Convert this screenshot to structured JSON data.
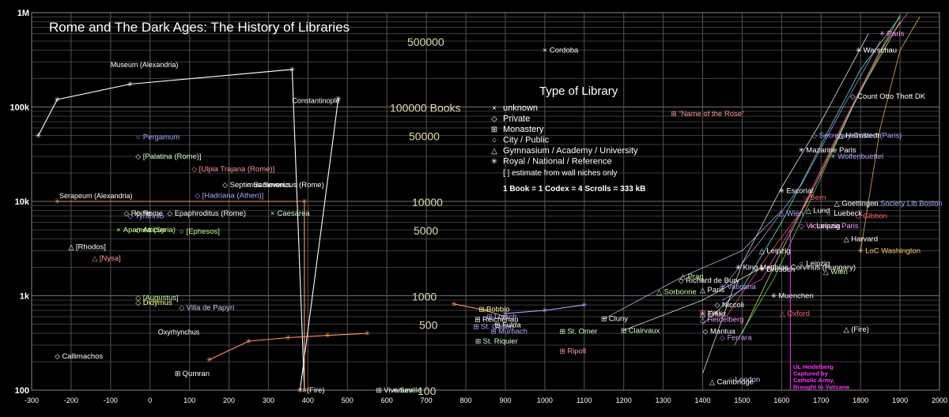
{
  "chart_data": {
    "type": "scatter",
    "title": "Rome and The Dark Ages: The History of Libraries",
    "x_axis": {
      "range": [
        -300,
        2000
      ],
      "ticks": [
        "-300",
        "-200",
        "-100",
        "0",
        "100",
        "200",
        "300",
        "400",
        "500",
        "600",
        "700",
        "800",
        "900",
        "1000",
        "1100",
        "1200",
        "1300",
        "1400",
        "1500",
        "1600",
        "1700",
        "1800",
        "1900",
        "2000"
      ]
    },
    "y_axis": {
      "scale": "log",
      "range": [
        100,
        1000000
      ],
      "ticks": [
        {
          "v": 100,
          "label": "100"
        },
        {
          "v": 1000,
          "label": "1k"
        },
        {
          "v": 10000,
          "label": "10k"
        },
        {
          "v": 100000,
          "label": "100k"
        },
        {
          "v": 1000000,
          "label": "1M"
        }
      ]
    },
    "grid": true,
    "guides": [
      {
        "label": "500000",
        "v": 500000
      },
      {
        "label": "100000 Books",
        "v": 100000
      },
      {
        "label": "50000",
        "v": 50000
      },
      {
        "label": "10000",
        "v": 10000
      },
      {
        "label": "5000",
        "v": 5000
      },
      {
        "label": "1000",
        "v": 1000
      },
      {
        "label": "500",
        "v": 500
      },
      {
        "label": "100",
        "v": 100
      }
    ],
    "legend": {
      "title": "Type of Library",
      "items": [
        {
          "symbol": "×",
          "label": "unknown"
        },
        {
          "symbol": "◇",
          "label": "Private"
        },
        {
          "symbol": "⊞",
          "label": "Monastery"
        },
        {
          "symbol": "○",
          "label": "City / Public"
        },
        {
          "symbol": "△",
          "label": "Gymnasium / Academy / University"
        },
        {
          "symbol": "✳",
          "label": "Royal / National / Reference"
        }
      ],
      "notes": [
        "[ ] estimate from wall niches only",
        "1 Book = 1 Codex = 4 Scrolls = 333 kB"
      ]
    },
    "series": [
      {
        "name": "Museum (Alexandria)",
        "color": "#ffffff",
        "label_at": [
          -100,
          265000
        ],
        "points": [
          [
            -283,
            50000
          ],
          [
            -235,
            120000
          ],
          [
            -50,
            175000
          ],
          [
            360,
            250000
          ],
          [
            391,
            100
          ]
        ]
      },
      {
        "name": "Constantinople",
        "color": "#ffffff",
        "label_at": [
          360,
          110000
        ],
        "points": [
          [
            380,
            100
          ],
          [
            477,
            123000
          ]
        ]
      },
      {
        "name": "Serapeum (Alexandria)",
        "color": "#ff9966",
        "label_at": [
          -230,
          10800
        ],
        "points": [
          [
            -235,
            10000
          ],
          [
            391,
            10000
          ],
          [
            391,
            100
          ]
        ]
      },
      {
        "name": "Oxyrhynchus",
        "color": "#ff9966",
        "label_at": [
          20,
          390
        ],
        "points": [
          [
            150,
            210
          ],
          [
            250,
            330
          ],
          [
            350,
            360
          ],
          [
            450,
            380
          ],
          [
            550,
            400
          ]
        ]
      },
      {
        "name": "",
        "color": "#ff9966",
        "points": [
          [
            770,
            820
          ],
          [
            850,
            700
          ],
          [
            900,
            600
          ]
        ]
      },
      {
        "name": "",
        "color": "#aaaaff",
        "points": [
          [
            900,
            650
          ],
          [
            1000,
            700
          ],
          [
            1100,
            800
          ]
        ]
      }
    ],
    "points": [
      {
        "label": "Cordoba",
        "x": 1000,
        "y": 400000,
        "m": "×",
        "c": "#ffffff"
      },
      {
        "label": "Pergamum",
        "x": -30,
        "y": 48000,
        "m": "○",
        "c": "#aaaaff"
      },
      {
        "label": "[Palatina (Rome)]",
        "x": -30,
        "y": 30000,
        "m": "◇",
        "c": "#ccffcc"
      },
      {
        "label": "[Ulpia Trajana (Rome)]",
        "x": 112,
        "y": 22000,
        "m": "◇",
        "c": "#ff9999"
      },
      {
        "label": "Septimus Severus",
        "x": 190,
        "y": 15000,
        "m": "◇",
        "c": "#ffffff"
      },
      {
        "label": "Sammonicus (Rome)",
        "x": 250,
        "y": 15000,
        "m": "○",
        "c": "#ffffff"
      },
      {
        "label": "[Hadriana (Athen)]",
        "x": 120,
        "y": 11500,
        "m": "◇",
        "c": "#aaaaff"
      },
      {
        "label": "Rome",
        "x": -60,
        "y": 7500,
        "m": "◇",
        "c": "#ffff99"
      },
      {
        "label": "Rome",
        "x": -30,
        "y": 7500,
        "m": "◇",
        "c": "#ffffff"
      },
      {
        "label": "Tyrannio",
        "x": -50,
        "y": 7000,
        "m": "◇",
        "c": "#aaaaff"
      },
      {
        "label": "Epaphroditus (Rome)",
        "x": 50,
        "y": 7500,
        "m": "◇",
        "c": "#ffffff"
      },
      {
        "label": "Caesarea",
        "x": 310,
        "y": 7500,
        "m": "×",
        "c": "#ccffcc"
      },
      {
        "label": "Apamea (Syria)",
        "x": -80,
        "y": 5000,
        "m": "×",
        "c": "#ccff99"
      },
      {
        "label": "Atticus",
        "x": -30,
        "y": 5000,
        "m": "◇",
        "c": "#ccff99"
      },
      {
        "label": "[Ephesos]",
        "x": 80,
        "y": 4800,
        "m": "○",
        "c": "#ccff99"
      },
      {
        "label": "[Rhodos]",
        "x": -200,
        "y": 3300,
        "m": "△",
        "c": "#ffffff"
      },
      {
        "label": "[Nysa]",
        "x": -140,
        "y": 2500,
        "m": "△",
        "c": "#ff9999"
      },
      {
        "label": "[Augustus]",
        "x": -30,
        "y": 950,
        "m": "◇",
        "c": "#ccff99"
      },
      {
        "label": "Didymus",
        "x": -30,
        "y": 850,
        "m": "◇",
        "c": "#ffff99"
      },
      {
        "label": "Villa de Papyri",
        "x": 80,
        "y": 750,
        "m": "◇",
        "c": "#ccccff"
      },
      {
        "label": "Callimachos",
        "x": -235,
        "y": 230,
        "m": "◇",
        "c": "#ffffff"
      },
      {
        "label": "Qumran",
        "x": 70,
        "y": 150,
        "m": "⊞",
        "c": "#ffffff"
      },
      {
        "label": "(Fire)",
        "x": 385,
        "y": 100,
        "m": "",
        "c": "#ffffff"
      },
      {
        "label": "Vivarium",
        "x": 580,
        "y": 100,
        "m": "⊞",
        "c": "#ffffff"
      },
      {
        "label": "Seville",
        "x": 620,
        "y": 100,
        "m": "×",
        "c": "#ccffcc"
      },
      {
        "label": "Bobbio",
        "x": 840,
        "y": 720,
        "m": "⊞",
        "c": "#ffff99"
      },
      {
        "label": "Lorsch",
        "x": 860,
        "y": 600,
        "m": "⊞",
        "c": "#aaaaff"
      },
      {
        "label": "Reichenau",
        "x": 830,
        "y": 560,
        "m": "⊞",
        "c": "#ffffff"
      },
      {
        "label": "St. Gallen",
        "x": 826,
        "y": 470,
        "m": "⊞",
        "c": "#aaaaff"
      },
      {
        "label": "Fulda",
        "x": 880,
        "y": 490,
        "m": "⊞",
        "c": "#ffffff"
      },
      {
        "label": "Murbach",
        "x": 870,
        "y": 420,
        "m": "⊞",
        "c": "#aaaaff"
      },
      {
        "label": "St. Riquier",
        "x": 831,
        "y": 330,
        "m": "⊞",
        "c": "#ccffcc"
      },
      {
        "label": "St. Omer",
        "x": 1045,
        "y": 420,
        "m": "⊞",
        "c": "#ccffcc"
      },
      {
        "label": "Ripoll",
        "x": 1045,
        "y": 260,
        "m": "⊞",
        "c": "#ff9999"
      },
      {
        "label": "Cluny",
        "x": 1150,
        "y": 570,
        "m": "⊞",
        "c": "#ffffff"
      },
      {
        "label": "Clairvaux",
        "x": 1200,
        "y": 430,
        "m": "⊞",
        "c": "#ccffcc"
      },
      {
        "label": "Vaticana",
        "x": 1450,
        "y": 1250,
        "m": "✳",
        "c": "#aaaaff"
      },
      {
        "label": "Sorbonne",
        "x": 1290,
        "y": 1100,
        "m": "△",
        "c": "#ccff99"
      },
      {
        "label": "Richard de Bury",
        "x": 1345,
        "y": 1450,
        "m": "◇",
        "c": "#ffffff"
      },
      {
        "label": "Prag",
        "x": 1350,
        "y": 1600,
        "m": "△",
        "c": "#ccff99"
      },
      {
        "label": "King Matthias Corvinus (Hungary)",
        "x": 1490,
        "y": 2000,
        "m": "✳",
        "c": "#ffffff"
      },
      {
        "label": "Paris",
        "x": 1400,
        "y": 1150,
        "m": "△",
        "c": "#ffffff"
      },
      {
        "label": "Niccoli",
        "x": 1437,
        "y": 800,
        "m": "◇",
        "c": "#ffffff"
      },
      {
        "label": "York",
        "x": 1400,
        "y": 660,
        "m": "⊞",
        "c": "#ff9999"
      },
      {
        "label": "Erfurt",
        "x": 1400,
        "y": 640,
        "m": "△",
        "c": "#ffffff"
      },
      {
        "label": "Heidelberg",
        "x": 1400,
        "y": 560,
        "m": "△",
        "c": "#ff99ff"
      },
      {
        "label": "Mantua",
        "x": 1407,
        "y": 420,
        "m": "◇",
        "c": "#ffffff"
      },
      {
        "label": "Ferrara",
        "x": 1450,
        "y": 360,
        "m": "◇",
        "c": "#cc99ff"
      },
      {
        "label": "Cambridge",
        "x": 1424,
        "y": 123,
        "m": "△",
        "c": "#ffffff"
      },
      {
        "label": "London",
        "x": 1470,
        "y": 130,
        "m": "○",
        "c": "#ccccff"
      },
      {
        "label": "Oxford",
        "x": 1602,
        "y": 650,
        "m": "△",
        "c": "#ff6666"
      },
      {
        "label": "Muenchen",
        "x": 1580,
        "y": 1000,
        "m": "✳",
        "c": "#ffffff"
      },
      {
        "label": "Dresden",
        "x": 1550,
        "y": 1900,
        "m": "✳",
        "c": "#ffffff"
      },
      {
        "label": "Leipzig",
        "x": 1550,
        "y": 3000,
        "m": "△",
        "c": "#ffffff"
      },
      {
        "label": "Leipzig",
        "x": 1650,
        "y": 2200,
        "m": "○",
        "c": "#ffffff"
      },
      {
        "label": "Wien",
        "x": 1600,
        "y": 7500,
        "m": "△",
        "c": "#aaaaff"
      },
      {
        "label": "Wien",
        "x": 1712,
        "y": 1800,
        "m": "△",
        "c": "#ccff99"
      },
      {
        "label": "Escorial",
        "x": 1600,
        "y": 13000,
        "m": "✳",
        "c": "#ffffff"
      },
      {
        "label": "Bern",
        "x": 1660,
        "y": 11000,
        "m": "○",
        "c": "#ff6666"
      },
      {
        "label": "Goettingen",
        "x": 1740,
        "y": 9500,
        "m": "△",
        "c": "#ffffff"
      },
      {
        "label": "Lund",
        "x": 1668,
        "y": 8000,
        "m": "△",
        "c": "#ffffff"
      },
      {
        "label": "Luebeck",
        "x": 1720,
        "y": 7500,
        "m": "○",
        "c": "#ffffff"
      },
      {
        "label": "Gibbon",
        "x": 1794,
        "y": 7000,
        "m": "◇",
        "c": "#ff6666"
      },
      {
        "label": "Victoriana Paris",
        "x": 1650,
        "y": 5500,
        "m": "◇",
        "c": "#ff99ff"
      },
      {
        "label": "Leipzig",
        "x": 1676,
        "y": 5500,
        "m": "○",
        "c": "#ffffff"
      },
      {
        "label": "Society Lib Boston",
        "x": 1838,
        "y": 9500,
        "m": "○",
        "c": "#aaaaff"
      },
      {
        "label": "LoC Washington",
        "x": 1800,
        "y": 3000,
        "m": "✳",
        "c": "#ffcc66"
      },
      {
        "label": "Harvard",
        "x": 1764,
        "y": 4000,
        "m": "△",
        "c": "#ffffff"
      },
      {
        "label": "(Fire)",
        "x": 1764,
        "y": 440,
        "m": "△",
        "c": "#ffffff"
      },
      {
        "label": "Wolfenbuettel",
        "x": 1730,
        "y": 30000,
        "m": "✳",
        "c": "#aaaaff"
      },
      {
        "label": "Mazarine Paris",
        "x": 1650,
        "y": 35000,
        "m": "✳",
        "c": "#ffffff"
      },
      {
        "label": "Secretary Colbert (Paris)",
        "x": 1683,
        "y": 50000,
        "m": "◇",
        "c": "#aaaaff"
      },
      {
        "label": "Helmstedt",
        "x": 1750,
        "y": 50000,
        "m": "△",
        "c": "#ffffff"
      },
      {
        "label": "Count Otto Thott DK",
        "x": 1780,
        "y": 130000,
        "m": "◇",
        "c": "#ffffff"
      },
      {
        "label": "Warschau",
        "x": 1795,
        "y": 400000,
        "m": "✳",
        "c": "#ffffff"
      },
      {
        "label": "Paris",
        "x": 1855,
        "y": 600000,
        "m": "✳",
        "c": "#ff99ff"
      },
      {
        "label": "\"Name of the Rose\"",
        "x": 1327,
        "y": 85000,
        "m": "⊞",
        "c": "#ff9999"
      }
    ],
    "annotation": {
      "lines": [
        "UL Heidelberg",
        "Captured by",
        "Catholic Army,",
        "Brought to Vaticana"
      ],
      "color": "#ff33ff"
    }
  }
}
